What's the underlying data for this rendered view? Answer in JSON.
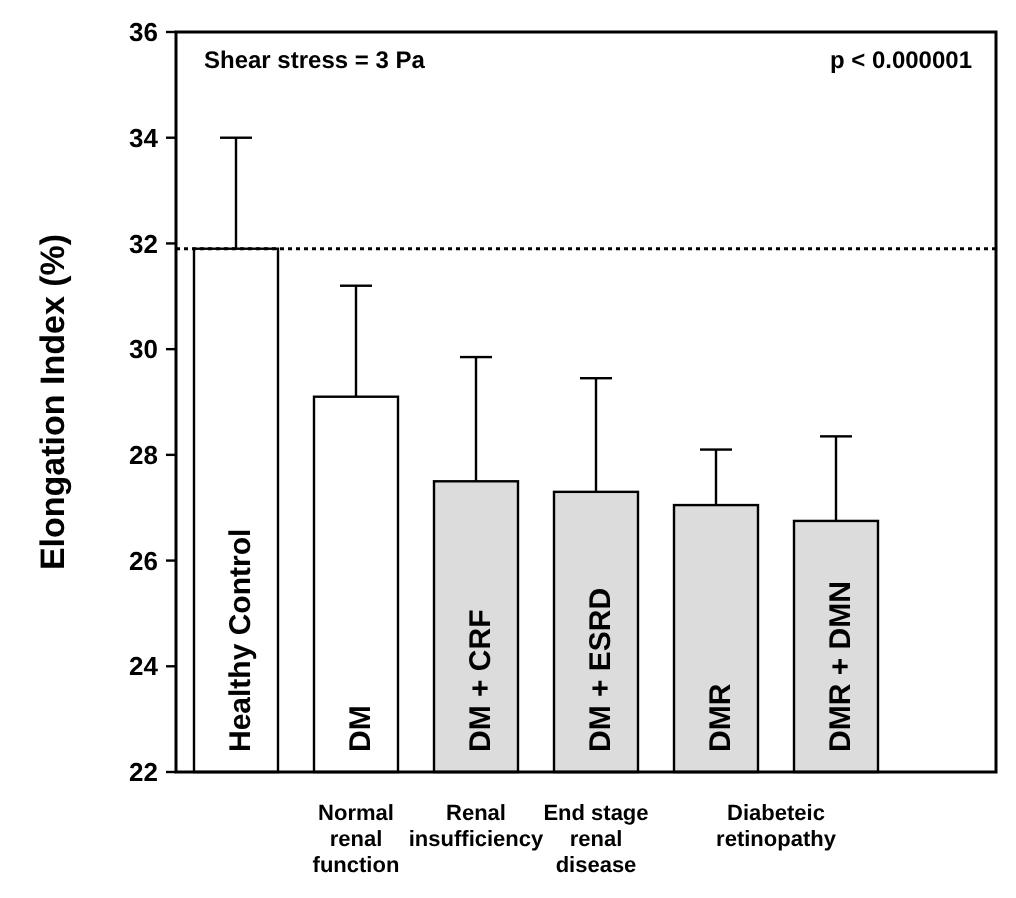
{
  "chart_data": {
    "type": "bar",
    "ylabel": "Elongation Index (%)",
    "categories": [
      "Healthy Control",
      "DM",
      "DM + CRF",
      "DM + ESRD",
      "DMR",
      "DMR + DMN"
    ],
    "values": [
      31.9,
      29.1,
      27.5,
      27.3,
      27.05,
      26.75
    ],
    "colors": [
      "#ffffff",
      "#ffffff",
      "#dcdcdc",
      "#dcdcdc",
      "#dcdcdc",
      "#dcdcdc"
    ],
    "errors": [
      [
        31.9,
        34.0
      ],
      [
        29.1,
        31.2
      ],
      [
        27.5,
        29.85
      ],
      [
        27.3,
        29.45
      ],
      [
        27.05,
        28.1
      ],
      [
        26.75,
        28.35
      ]
    ],
    "ylim": [
      22,
      36
    ],
    "yticks": [
      22,
      24,
      26,
      28,
      30,
      32,
      34,
      36
    ],
    "grid": false,
    "ref_lines": [
      {
        "axis": "y",
        "value": 31.9,
        "line_style": "dotted",
        "color": "#000000"
      }
    ],
    "annotations": [
      "Shear stress = 3 Pa",
      "p < 0.000001",
      "Normal renal function",
      "Renal insufficiency",
      "End stage renal disease",
      "Diabeteic retinopathy"
    ]
  }
}
